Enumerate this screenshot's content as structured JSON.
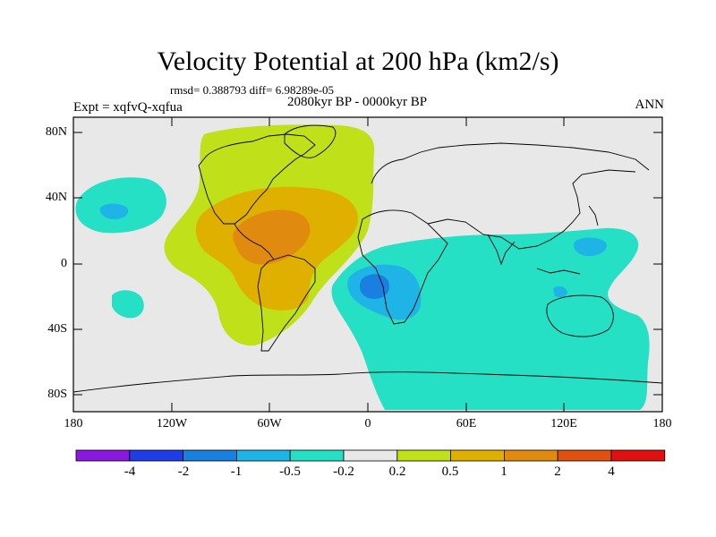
{
  "title": "Velocity Potential at 200 hPa (km2/s)",
  "stats_line": "rmsd= 0.388793 diff= 6.98289e-05",
  "left_label": "Expt = xqfvQ-xqfua",
  "center_label": "2080kyr BP - 0000kyr BP",
  "right_label": "ANN",
  "lat_ticks": [
    "80N",
    "40N",
    "0",
    "40S",
    "80S"
  ],
  "lon_ticks": [
    "180",
    "120W",
    "60W",
    "0",
    "60E",
    "120E",
    "180"
  ],
  "colorbar": {
    "colors": [
      "#8a19e0",
      "#1f3ce6",
      "#1a80e0",
      "#1fb4e6",
      "#26e0c6",
      "#e8e8e8",
      "#c0e01a",
      "#e0b000",
      "#e08a10",
      "#e05010",
      "#e01010"
    ],
    "labels": [
      "-4",
      "-2",
      "-1",
      "-0.5",
      "-0.2",
      "0.2",
      "0.5",
      "1",
      "2",
      "4"
    ]
  },
  "map_colors": {
    "background": "#e8e8e8",
    "pos_02": "#c0e01a",
    "pos_05": "#e0b000",
    "pos_1": "#e08a10",
    "neg_02": "#26e0c6",
    "neg_05": "#1fb4e6",
    "neg_1": "#1a80e0",
    "coast": "#000000"
  }
}
